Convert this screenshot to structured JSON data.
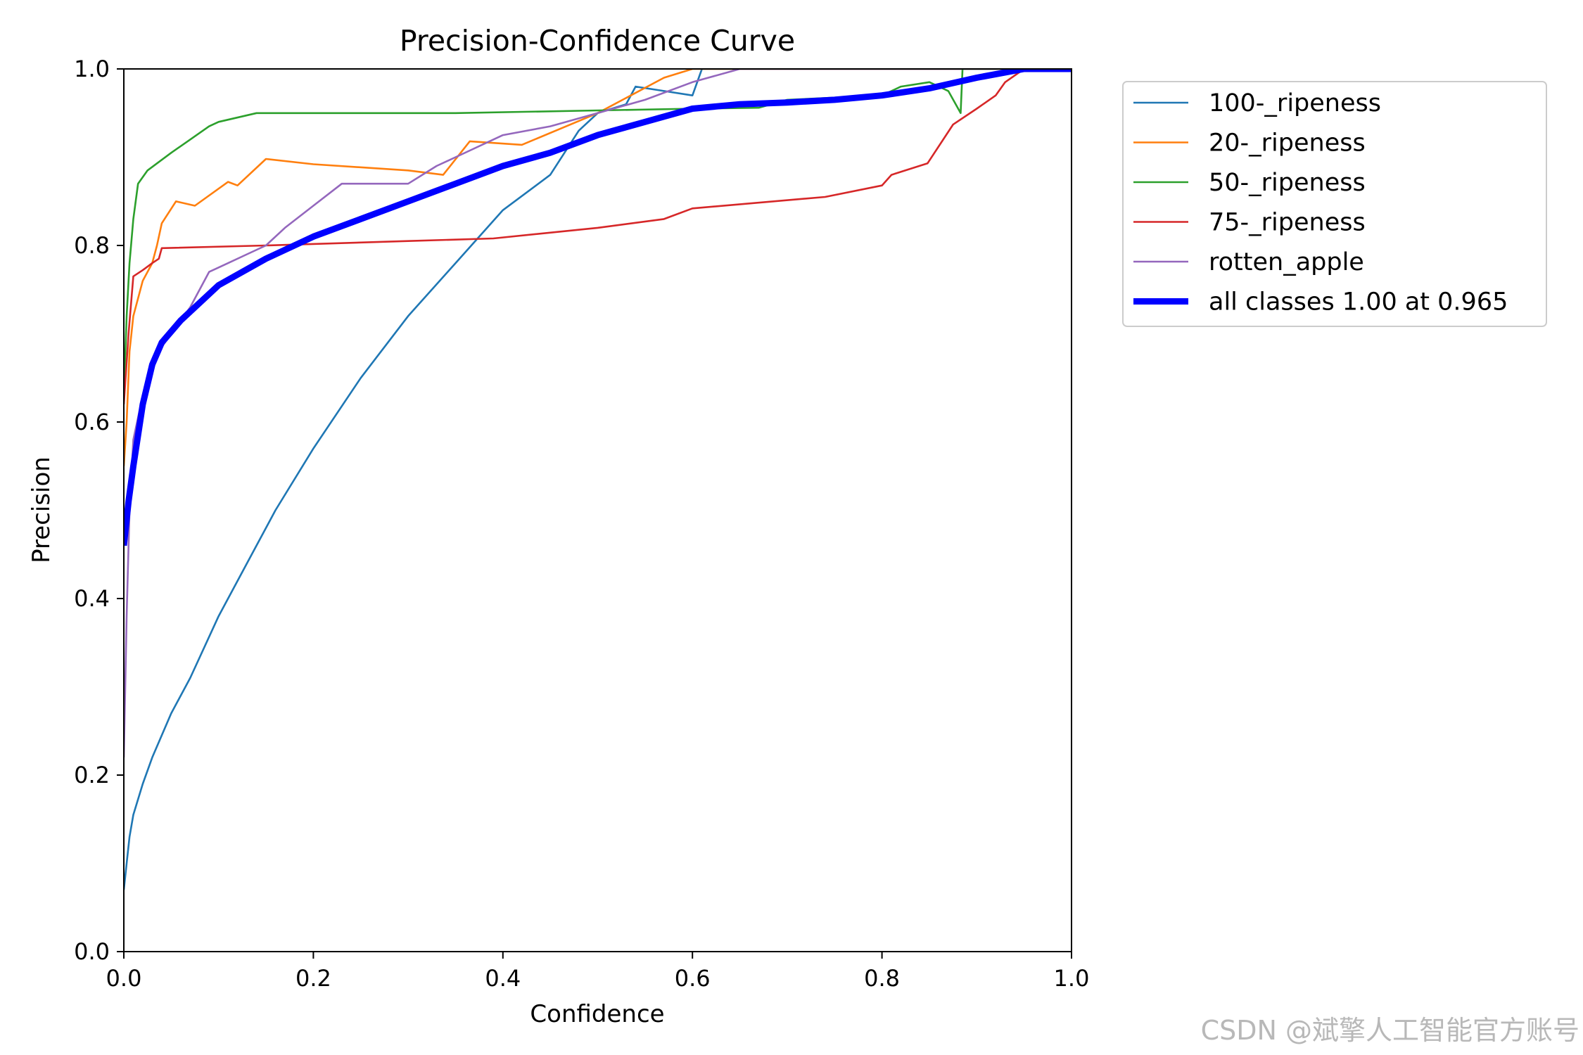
{
  "chart_data": {
    "type": "line",
    "title": "Precision-Confidence Curve",
    "xlabel": "Confidence",
    "ylabel": "Precision",
    "xlim": [
      0.0,
      1.0
    ],
    "ylim": [
      0.0,
      1.0
    ],
    "xticks": [
      "0.0",
      "0.2",
      "0.4",
      "0.6",
      "0.8",
      "1.0"
    ],
    "yticks": [
      "0.0",
      "0.2",
      "0.4",
      "0.6",
      "0.8",
      "1.0"
    ],
    "grid": false,
    "legend_position": "outside-top-right",
    "series": [
      {
        "name": "100-_ripeness",
        "color": "#1f77b4",
        "width": "thin",
        "points": [
          [
            0.0,
            0.07
          ],
          [
            0.003,
            0.1
          ],
          [
            0.006,
            0.13
          ],
          [
            0.01,
            0.155
          ],
          [
            0.02,
            0.19
          ],
          [
            0.03,
            0.22
          ],
          [
            0.05,
            0.27
          ],
          [
            0.07,
            0.31
          ],
          [
            0.1,
            0.38
          ],
          [
            0.13,
            0.44
          ],
          [
            0.16,
            0.5
          ],
          [
            0.2,
            0.57
          ],
          [
            0.25,
            0.65
          ],
          [
            0.3,
            0.72
          ],
          [
            0.35,
            0.78
          ],
          [
            0.4,
            0.84
          ],
          [
            0.45,
            0.88
          ],
          [
            0.48,
            0.93
          ],
          [
            0.5,
            0.95
          ],
          [
            0.53,
            0.96
          ],
          [
            0.54,
            0.98
          ],
          [
            0.57,
            0.975
          ],
          [
            0.6,
            0.97
          ],
          [
            0.61,
            1.0
          ],
          [
            1.0,
            1.0
          ]
        ]
      },
      {
        "name": "20-_ripeness",
        "color": "#ff7f0e",
        "width": "thin",
        "points": [
          [
            0.0,
            0.55
          ],
          [
            0.003,
            0.6
          ],
          [
            0.006,
            0.68
          ],
          [
            0.01,
            0.72
          ],
          [
            0.02,
            0.76
          ],
          [
            0.03,
            0.78
          ],
          [
            0.035,
            0.8
          ],
          [
            0.04,
            0.825
          ],
          [
            0.055,
            0.85
          ],
          [
            0.075,
            0.845
          ],
          [
            0.11,
            0.872
          ],
          [
            0.12,
            0.868
          ],
          [
            0.15,
            0.898
          ],
          [
            0.2,
            0.892
          ],
          [
            0.3,
            0.885
          ],
          [
            0.337,
            0.88
          ],
          [
            0.365,
            0.918
          ],
          [
            0.42,
            0.914
          ],
          [
            0.5,
            0.95
          ],
          [
            0.57,
            0.99
          ],
          [
            0.6,
            1.0
          ],
          [
            1.0,
            1.0
          ]
        ]
      },
      {
        "name": "50-_ripeness",
        "color": "#2ca02c",
        "width": "thin",
        "points": [
          [
            0.0,
            0.63
          ],
          [
            0.003,
            0.72
          ],
          [
            0.006,
            0.78
          ],
          [
            0.01,
            0.83
          ],
          [
            0.015,
            0.87
          ],
          [
            0.025,
            0.885
          ],
          [
            0.035,
            0.893
          ],
          [
            0.05,
            0.905
          ],
          [
            0.07,
            0.92
          ],
          [
            0.09,
            0.935
          ],
          [
            0.1,
            0.94
          ],
          [
            0.14,
            0.95
          ],
          [
            0.35,
            0.95
          ],
          [
            0.5,
            0.953
          ],
          [
            0.6,
            0.955
          ],
          [
            0.67,
            0.956
          ],
          [
            0.7,
            0.965
          ],
          [
            0.8,
            0.97
          ],
          [
            0.82,
            0.98
          ],
          [
            0.85,
            0.985
          ],
          [
            0.87,
            0.975
          ],
          [
            0.883,
            0.95
          ],
          [
            0.885,
            1.0
          ],
          [
            1.0,
            1.0
          ]
        ]
      },
      {
        "name": "75-_ripeness",
        "color": "#d62728",
        "width": "thin",
        "points": [
          [
            0.0,
            0.62
          ],
          [
            0.005,
            0.7
          ],
          [
            0.01,
            0.765
          ],
          [
            0.02,
            0.772
          ],
          [
            0.03,
            0.78
          ],
          [
            0.037,
            0.785
          ],
          [
            0.04,
            0.797
          ],
          [
            0.15,
            0.8
          ],
          [
            0.3,
            0.805
          ],
          [
            0.39,
            0.808
          ],
          [
            0.5,
            0.82
          ],
          [
            0.57,
            0.83
          ],
          [
            0.6,
            0.842
          ],
          [
            0.74,
            0.855
          ],
          [
            0.8,
            0.868
          ],
          [
            0.81,
            0.88
          ],
          [
            0.848,
            0.893
          ],
          [
            0.875,
            0.937
          ],
          [
            0.9,
            0.955
          ],
          [
            0.92,
            0.97
          ],
          [
            0.93,
            0.985
          ],
          [
            0.95,
            1.0
          ],
          [
            1.0,
            1.0
          ]
        ]
      },
      {
        "name": "rotten_apple",
        "color": "#9467bd",
        "width": "thin",
        "points": [
          [
            0.0,
            0.22
          ],
          [
            0.003,
            0.38
          ],
          [
            0.006,
            0.5
          ],
          [
            0.01,
            0.58
          ],
          [
            0.02,
            0.63
          ],
          [
            0.03,
            0.67
          ],
          [
            0.05,
            0.7
          ],
          [
            0.07,
            0.73
          ],
          [
            0.09,
            0.77
          ],
          [
            0.11,
            0.78
          ],
          [
            0.13,
            0.79
          ],
          [
            0.15,
            0.8
          ],
          [
            0.17,
            0.82
          ],
          [
            0.2,
            0.845
          ],
          [
            0.23,
            0.87
          ],
          [
            0.3,
            0.87
          ],
          [
            0.33,
            0.89
          ],
          [
            0.35,
            0.9
          ],
          [
            0.4,
            0.925
          ],
          [
            0.45,
            0.935
          ],
          [
            0.5,
            0.95
          ],
          [
            0.55,
            0.965
          ],
          [
            0.6,
            0.985
          ],
          [
            0.65,
            1.0
          ],
          [
            1.0,
            1.0
          ]
        ]
      },
      {
        "name": "all classes 1.00 at 0.965",
        "color": "#0000ff",
        "width": "thick",
        "points": [
          [
            0.0,
            0.46
          ],
          [
            0.005,
            0.51
          ],
          [
            0.01,
            0.55
          ],
          [
            0.02,
            0.62
          ],
          [
            0.03,
            0.665
          ],
          [
            0.04,
            0.69
          ],
          [
            0.06,
            0.715
          ],
          [
            0.08,
            0.735
          ],
          [
            0.1,
            0.755
          ],
          [
            0.15,
            0.785
          ],
          [
            0.2,
            0.81
          ],
          [
            0.25,
            0.83
          ],
          [
            0.3,
            0.85
          ],
          [
            0.35,
            0.87
          ],
          [
            0.4,
            0.89
          ],
          [
            0.45,
            0.905
          ],
          [
            0.5,
            0.925
          ],
          [
            0.55,
            0.94
          ],
          [
            0.6,
            0.955
          ],
          [
            0.65,
            0.96
          ],
          [
            0.7,
            0.962
          ],
          [
            0.75,
            0.965
          ],
          [
            0.8,
            0.97
          ],
          [
            0.85,
            0.978
          ],
          [
            0.9,
            0.99
          ],
          [
            0.95,
            1.0
          ],
          [
            1.0,
            1.0
          ]
        ]
      }
    ]
  },
  "watermark": "CSDN @斌擎人工智能官方账号"
}
